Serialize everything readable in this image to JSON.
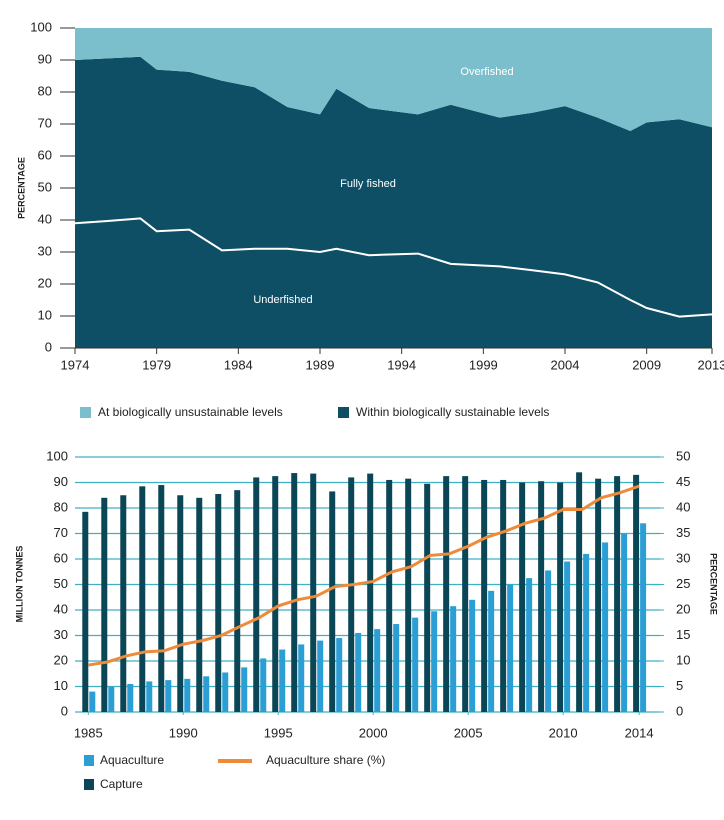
{
  "chart_data": [
    {
      "type": "stacked_area",
      "ylabel": "PERCENTAGE",
      "x": [
        1974,
        1976,
        1978,
        1979,
        1981,
        1983,
        1985,
        1987,
        1989,
        1990,
        1992,
        1995,
        1997,
        2000,
        2002,
        2004,
        2006,
        2008,
        2009,
        2011,
        2013
      ],
      "series": [
        {
          "name": "Within biologically sustainable levels",
          "color": "#0e4f66",
          "values": [
            90,
            90.5,
            91,
            87,
            86.3,
            83.5,
            81.5,
            75.3,
            73,
            81,
            75,
            73,
            76,
            72,
            73.5,
            75.6,
            72,
            67.8,
            70.5,
            71.5,
            69
          ]
        },
        {
          "name": "At biologically unsustainable levels",
          "color": "#7cbfcc",
          "values": [
            10,
            9.5,
            9,
            13,
            13.7,
            16.5,
            18.5,
            24.7,
            27,
            19,
            25,
            27,
            24,
            28,
            26.5,
            24.4,
            28,
            32.2,
            29.5,
            28.5,
            31
          ]
        }
      ],
      "line": {
        "label": "Underfished",
        "color": "#ffffff",
        "values": [
          39,
          39.7,
          40.5,
          36.5,
          37,
          30.5,
          31,
          31,
          30,
          31,
          29,
          29.5,
          26.3,
          25.5,
          24.3,
          23,
          20.5,
          15,
          12.5,
          9.8,
          10.5
        ]
      },
      "annotations": [
        "Overfished",
        "Fully fished"
      ],
      "xlim": [
        1974,
        2013
      ],
      "xticks": [
        1974,
        1979,
        1984,
        1989,
        1994,
        1999,
        2004,
        2009,
        2013
      ],
      "ylim": [
        0,
        100
      ],
      "yticks": [
        0,
        10,
        20,
        30,
        40,
        50,
        60,
        70,
        80,
        90,
        100
      ]
    },
    {
      "type": "bar_line",
      "ylabel": "MILLION TONNES",
      "y2label": "PERCENTAGE",
      "x": [
        1985,
        1986,
        1987,
        1988,
        1989,
        1990,
        1991,
        1992,
        1993,
        1994,
        1995,
        1996,
        1997,
        1998,
        1999,
        2000,
        2001,
        2002,
        2003,
        2004,
        2005,
        2006,
        2007,
        2008,
        2009,
        2010,
        2011,
        2012,
        2013,
        2014
      ],
      "series": [
        {
          "name": "Aquaculture",
          "color": "#2b9fd5",
          "values": [
            8,
            10,
            11,
            12,
            12.5,
            13,
            14,
            15.5,
            17.5,
            21,
            24.5,
            26.5,
            28,
            29,
            31,
            32.5,
            34.5,
            37,
            39.5,
            41.5,
            44,
            47.5,
            50,
            52.5,
            55.5,
            59,
            62,
            66.5,
            70,
            74
          ]
        },
        {
          "name": "Capture",
          "color": "#0b4656",
          "values": [
            78.5,
            84,
            85,
            88.5,
            89,
            85,
            84,
            85.5,
            87,
            92,
            92.5,
            93.7,
            93.5,
            86.5,
            92,
            93.5,
            91,
            91.5,
            89.5,
            92.5,
            92.5,
            91,
            91,
            90,
            90.5,
            90,
            94,
            91.5,
            92.5,
            93
          ]
        },
        {
          "name": "Aquaculture share (%)",
          "color": "#ee8b3a",
          "axis": "y2",
          "values": [
            9.2,
            9.8,
            11,
            11.8,
            12,
            13.3,
            14,
            15,
            16.8,
            18.5,
            20.8,
            22,
            22.7,
            24.6,
            25,
            25.6,
            27.5,
            28.5,
            30.7,
            31,
            32.5,
            34.3,
            35.5,
            37,
            38,
            39.7,
            39.7,
            42,
            43,
            44.3
          ]
        }
      ],
      "xlim": [
        1984.3,
        2015.1
      ],
      "xticks": [
        1985,
        1990,
        1995,
        2000,
        2005,
        2010,
        2014
      ],
      "ylim": [
        0,
        100
      ],
      "yticks": [
        0,
        10,
        20,
        30,
        40,
        50,
        60,
        70,
        80,
        90,
        100
      ],
      "y2lim": [
        0,
        50
      ],
      "y2ticks": [
        0,
        5,
        10,
        15,
        20,
        25,
        30,
        35,
        40,
        45,
        50
      ],
      "grid": true
    }
  ]
}
